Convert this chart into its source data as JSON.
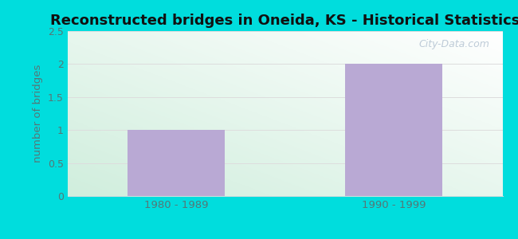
{
  "title": "Reconstructed bridges in Oneida, KS - Historical Statistics",
  "categories": [
    "1980 - 1989",
    "1990 - 1999"
  ],
  "values": [
    1,
    2
  ],
  "bar_color": "#b9a9d4",
  "ylabel": "number of bridges",
  "ylim": [
    0,
    2.5
  ],
  "yticks": [
    0,
    0.5,
    1,
    1.5,
    2,
    2.5
  ],
  "ytick_labels": [
    "0",
    "0.5",
    "1",
    "1.5",
    "2",
    "2.5"
  ],
  "title_fontsize": 13,
  "title_fontweight": "bold",
  "axis_label_color": "#557777",
  "tick_label_color": "#557777",
  "background_outer": "#00dddd",
  "grid_color": "#dddddd",
  "watermark": "City-Data.com"
}
